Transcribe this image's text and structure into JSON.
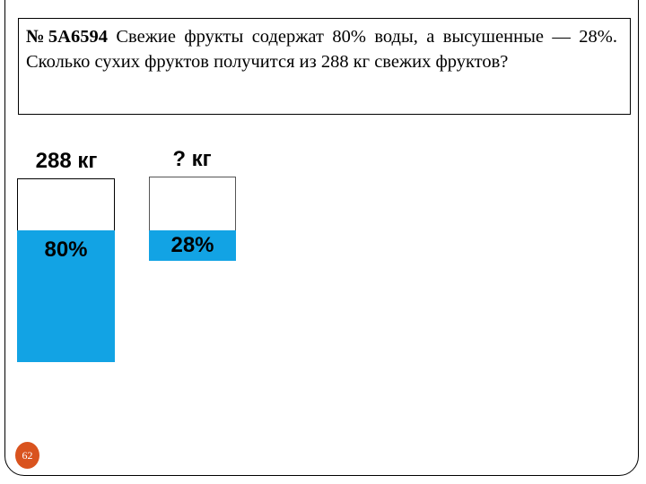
{
  "problem": {
    "number": "№5А6594",
    "text": "Свежие фрукты содержат 80% воды, а высушенные — 28%. Сколько сухих фруктов получится из 288 кг свежих фруктов?"
  },
  "fresh": {
    "mass_label": "288 кг",
    "water_label": "80%",
    "water_fraction": 0.8
  },
  "dried": {
    "mass_label": "? кг",
    "water_label": "28%",
    "water_fraction": 0.28
  },
  "slide_number": "62",
  "colors": {
    "water": "#12a3e4",
    "page_badge": "#d9531e"
  }
}
